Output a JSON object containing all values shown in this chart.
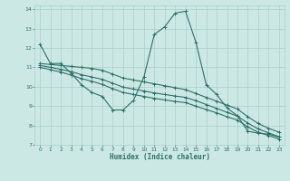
{
  "xlabel": "Humidex (Indice chaleur)",
  "background_color": "#cce8e5",
  "grid_color": "#aacfcc",
  "line_color": "#2d7068",
  "xlim": [
    -0.5,
    23.5
  ],
  "ylim": [
    7,
    14.2
  ],
  "yticks": [
    7,
    8,
    9,
    10,
    11,
    12,
    13,
    14
  ],
  "xticks": [
    0,
    1,
    2,
    3,
    4,
    5,
    6,
    7,
    8,
    9,
    10,
    11,
    12,
    13,
    14,
    15,
    16,
    17,
    18,
    19,
    20,
    21,
    22,
    23
  ],
  "line1_x": [
    0,
    1,
    2,
    3,
    4,
    5,
    6,
    7,
    8,
    9,
    10,
    11,
    12,
    13,
    14,
    15,
    16,
    17,
    18,
    19,
    20,
    21,
    22,
    23
  ],
  "line1_y": [
    12.2,
    11.2,
    11.2,
    10.7,
    10.1,
    9.7,
    9.5,
    8.8,
    8.8,
    9.3,
    10.5,
    12.7,
    13.1,
    13.8,
    13.9,
    12.3,
    10.1,
    9.6,
    8.9,
    8.5,
    7.7,
    7.6,
    7.55,
    7.4
  ],
  "line2_x": [
    0,
    1,
    2,
    3,
    4,
    5,
    6,
    7,
    8,
    9,
    10,
    11,
    12,
    13,
    14,
    15,
    16,
    17,
    18,
    19,
    20,
    21,
    22,
    23
  ],
  "line2_y": [
    11.2,
    11.15,
    11.1,
    11.05,
    11.0,
    10.95,
    10.85,
    10.65,
    10.45,
    10.35,
    10.25,
    10.15,
    10.05,
    9.95,
    9.85,
    9.65,
    9.45,
    9.25,
    9.05,
    8.85,
    8.45,
    8.1,
    7.85,
    7.65
  ],
  "line3_x": [
    0,
    1,
    2,
    3,
    4,
    5,
    6,
    7,
    8,
    9,
    10,
    11,
    12,
    13,
    14,
    15,
    16,
    17,
    18,
    19,
    20,
    21,
    22,
    23
  ],
  "line3_y": [
    11.1,
    11.0,
    10.9,
    10.78,
    10.62,
    10.5,
    10.38,
    10.18,
    9.98,
    9.88,
    9.78,
    9.68,
    9.6,
    9.52,
    9.45,
    9.28,
    9.08,
    8.88,
    8.68,
    8.48,
    8.12,
    7.82,
    7.62,
    7.42
  ],
  "line4_x": [
    0,
    1,
    2,
    3,
    4,
    5,
    6,
    7,
    8,
    9,
    10,
    11,
    12,
    13,
    14,
    15,
    16,
    17,
    18,
    19,
    20,
    21,
    22,
    23
  ],
  "line4_y": [
    11.0,
    10.88,
    10.76,
    10.6,
    10.42,
    10.28,
    10.12,
    9.9,
    9.7,
    9.6,
    9.5,
    9.4,
    9.32,
    9.24,
    9.18,
    9.0,
    8.82,
    8.65,
    8.45,
    8.28,
    7.92,
    7.65,
    7.48,
    7.3
  ]
}
